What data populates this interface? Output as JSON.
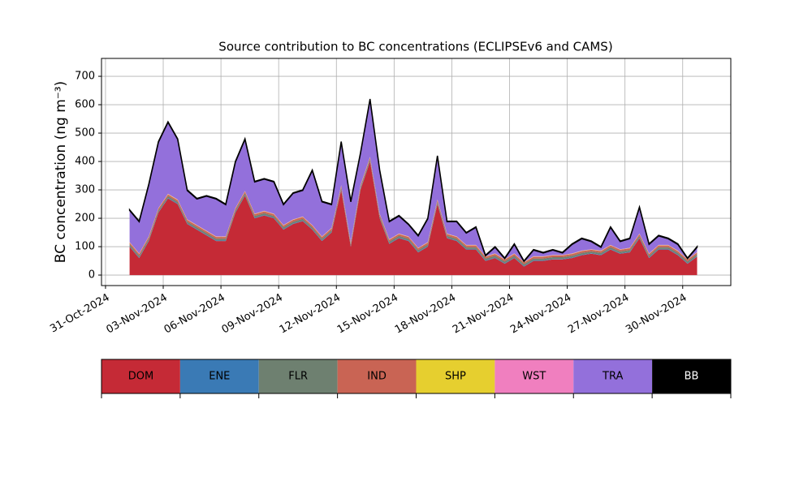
{
  "chart_data": {
    "type": "stacked_area",
    "title": "Source contribution to BC concentrations (ECLIPSEv6 and CAMS)",
    "y_label": "BC concentration (ng m⁻³)",
    "x": [
      "2024-11-01T06:00",
      "2024-11-01T18:00",
      "2024-11-02T06:00",
      "2024-11-02T18:00",
      "2024-11-03T06:00",
      "2024-11-03T18:00",
      "2024-11-04T06:00",
      "2024-11-04T18:00",
      "2024-11-05T06:00",
      "2024-11-05T18:00",
      "2024-11-06T06:00",
      "2024-11-06T18:00",
      "2024-11-07T06:00",
      "2024-11-07T18:00",
      "2024-11-08T06:00",
      "2024-11-08T18:00",
      "2024-11-09T06:00",
      "2024-11-09T18:00",
      "2024-11-10T06:00",
      "2024-11-10T18:00",
      "2024-11-11T06:00",
      "2024-11-11T18:00",
      "2024-11-12T06:00",
      "2024-11-12T18:00",
      "2024-11-13T06:00",
      "2024-11-13T18:00",
      "2024-11-14T06:00",
      "2024-11-14T18:00",
      "2024-11-15T06:00",
      "2024-11-15T18:00",
      "2024-11-16T06:00",
      "2024-11-16T18:00",
      "2024-11-17T06:00",
      "2024-11-17T18:00",
      "2024-11-18T06:00",
      "2024-11-18T18:00",
      "2024-11-19T06:00",
      "2024-11-19T18:00",
      "2024-11-20T06:00",
      "2024-11-20T18:00",
      "2024-11-21T06:00",
      "2024-11-21T18:00",
      "2024-11-22T06:00",
      "2024-11-22T18:00",
      "2024-11-23T06:00",
      "2024-11-23T18:00",
      "2024-11-24T06:00",
      "2024-11-24T18:00",
      "2024-11-25T06:00",
      "2024-11-25T18:00",
      "2024-11-26T06:00",
      "2024-11-26T18:00",
      "2024-11-27T06:00",
      "2024-11-27T18:00",
      "2024-11-28T06:00",
      "2024-11-28T18:00",
      "2024-11-29T06:00",
      "2024-11-29T18:00",
      "2024-11-30T06:00",
      "2024-11-30T18:00"
    ],
    "series": [
      {
        "name": "DOM",
        "color": "#c52a36",
        "values": [
          100,
          60,
          120,
          220,
          270,
          250,
          180,
          160,
          140,
          120,
          120,
          220,
          280,
          200,
          210,
          200,
          160,
          180,
          190,
          160,
          120,
          150,
          300,
          100,
          300,
          400,
          200,
          110,
          130,
          120,
          80,
          100,
          250,
          130,
          120,
          90,
          90,
          50,
          60,
          40,
          60,
          30,
          50,
          50,
          55,
          55,
          60,
          70,
          75,
          70,
          90,
          75,
          80,
          130,
          60,
          90,
          90,
          70,
          40,
          65
        ]
      },
      {
        "name": "ENE",
        "color": "#3a7ab5",
        "values": [
          2,
          2,
          2,
          2,
          2,
          2,
          2,
          2,
          2,
          2,
          2,
          2,
          2,
          2,
          2,
          2,
          2,
          2,
          2,
          2,
          2,
          2,
          2,
          2,
          2,
          2,
          2,
          2,
          2,
          2,
          2,
          2,
          2,
          2,
          2,
          2,
          2,
          2,
          2,
          2,
          2,
          2,
          2,
          2,
          2,
          2,
          2,
          2,
          2,
          2,
          2,
          2,
          2,
          2,
          2,
          2,
          2,
          2,
          2,
          2
        ]
      },
      {
        "name": "FLR",
        "color": "#6e8070",
        "values": [
          6,
          6,
          6,
          6,
          6,
          6,
          6,
          6,
          6,
          6,
          6,
          6,
          6,
          6,
          6,
          6,
          6,
          6,
          6,
          6,
          6,
          6,
          6,
          6,
          6,
          6,
          6,
          6,
          6,
          6,
          6,
          6,
          6,
          6,
          6,
          6,
          6,
          6,
          6,
          6,
          6,
          6,
          6,
          6,
          6,
          6,
          6,
          6,
          6,
          6,
          6,
          6,
          6,
          6,
          6,
          6,
          6,
          6,
          6,
          6
        ]
      },
      {
        "name": "IND",
        "color": "#c96454",
        "values": [
          6,
          6,
          6,
          6,
          6,
          6,
          6,
          6,
          6,
          6,
          6,
          6,
          6,
          6,
          6,
          6,
          6,
          6,
          6,
          6,
          6,
          6,
          6,
          6,
          6,
          6,
          6,
          6,
          6,
          6,
          6,
          6,
          6,
          6,
          6,
          6,
          6,
          6,
          6,
          6,
          6,
          6,
          6,
          6,
          6,
          6,
          6,
          6,
          6,
          6,
          6,
          6,
          6,
          6,
          6,
          6,
          6,
          6,
          6,
          6
        ]
      },
      {
        "name": "SHP",
        "color": "#e6cf2f",
        "values": [
          1,
          1,
          1,
          1,
          1,
          1,
          1,
          1,
          1,
          1,
          1,
          1,
          1,
          1,
          1,
          1,
          1,
          1,
          1,
          1,
          1,
          1,
          1,
          1,
          1,
          1,
          1,
          1,
          1,
          1,
          1,
          1,
          1,
          1,
          1,
          1,
          1,
          1,
          1,
          1,
          1,
          1,
          1,
          1,
          1,
          1,
          1,
          1,
          1,
          1,
          1,
          1,
          1,
          1,
          1,
          1,
          1,
          1,
          1,
          1
        ]
      },
      {
        "name": "WST",
        "color": "#f07fbf",
        "values": [
          1,
          1,
          1,
          1,
          1,
          1,
          1,
          1,
          1,
          1,
          1,
          1,
          1,
          1,
          1,
          1,
          1,
          1,
          1,
          1,
          1,
          1,
          1,
          1,
          1,
          1,
          1,
          1,
          1,
          1,
          1,
          1,
          1,
          1,
          1,
          1,
          1,
          1,
          1,
          1,
          1,
          1,
          1,
          1,
          1,
          1,
          1,
          1,
          1,
          1,
          1,
          1,
          1,
          1,
          1,
          1,
          1,
          1,
          1,
          1
        ]
      },
      {
        "name": "TRA",
        "color": "#9370db",
        "values": [
          112,
          112,
          182,
          232,
          252,
          212,
          102,
          92,
          122,
          132,
          112,
          162,
          182,
          112,
          112,
          112,
          72,
          92,
          92,
          192,
          122,
          82,
          152,
          142,
          112,
          202,
          152,
          62,
          62,
          42,
          42,
          82,
          152,
          42,
          52,
          42,
          62,
          2,
          22,
          2,
          32,
          2,
          22,
          12,
          17,
          7,
          32,
          42,
          27,
          12,
          62,
          27,
          32,
          92,
          32,
          32,
          22,
          22,
          2,
          17
        ]
      },
      {
        "name": "BB",
        "color": "#000000",
        "values": [
          2,
          2,
          2,
          2,
          2,
          2,
          2,
          2,
          2,
          2,
          2,
          2,
          2,
          2,
          2,
          2,
          2,
          2,
          2,
          2,
          2,
          2,
          2,
          2,
          2,
          2,
          2,
          2,
          2,
          2,
          2,
          2,
          2,
          2,
          2,
          2,
          2,
          2,
          2,
          2,
          2,
          2,
          2,
          2,
          2,
          2,
          2,
          2,
          2,
          2,
          2,
          2,
          2,
          2,
          2,
          2,
          2,
          2,
          2,
          2
        ]
      }
    ],
    "xlim": [
      "2024-10-30T19:00",
      "2024-12-02T12:00"
    ],
    "xticks": [
      {
        "value": "2024-10-31T00:00",
        "label": "31-Oct-2024"
      },
      {
        "value": "2024-11-03T00:00",
        "label": "03-Nov-2024"
      },
      {
        "value": "2024-11-06T00:00",
        "label": "06-Nov-2024"
      },
      {
        "value": "2024-11-09T00:00",
        "label": "09-Nov-2024"
      },
      {
        "value": "2024-11-12T00:00",
        "label": "12-Nov-2024"
      },
      {
        "value": "2024-11-15T00:00",
        "label": "15-Nov-2024"
      },
      {
        "value": "2024-11-18T00:00",
        "label": "18-Nov-2024"
      },
      {
        "value": "2024-11-21T00:00",
        "label": "21-Nov-2024"
      },
      {
        "value": "2024-11-24T00:00",
        "label": "24-Nov-2024"
      },
      {
        "value": "2024-11-27T00:00",
        "label": "27-Nov-2024"
      },
      {
        "value": "2024-11-30T00:00",
        "label": "30-Nov-2024"
      }
    ],
    "ylim": [
      -37,
      763
    ],
    "yticks": [
      0,
      100,
      200,
      300,
      400,
      500,
      600,
      700
    ],
    "grid": true
  }
}
